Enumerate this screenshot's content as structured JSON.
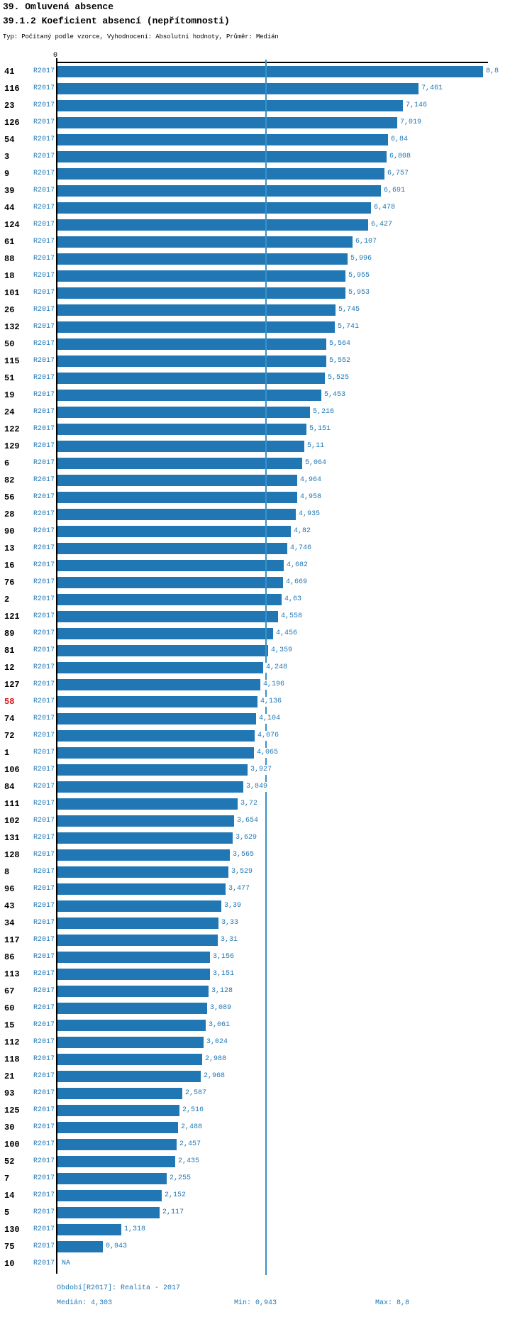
{
  "header": {
    "title": "39. Omluvená absence",
    "subtitle": "39.1.2 Koeficient absencí (nepřítomnosti)",
    "meta": "Typ: Počítaný podle vzorce, Vyhodnocení: Absolutní hodnoty, Průměr: Medián"
  },
  "axis": {
    "zero_label": "0"
  },
  "footer": {
    "period": "Období[R2017]: Realita - 2017",
    "median": "Medián: 4,303",
    "min": "Min: 0,943",
    "max": "Max: 8,8"
  },
  "colors": {
    "bar": "#2077b4",
    "value_text": "#2077b4",
    "median_line": "#3a92c5",
    "highlight": "#dd1111",
    "axis": "#000000"
  },
  "chart_data": {
    "type": "bar",
    "orientation": "horizontal",
    "title": "39.1.2 Koeficient absencí (nepřítomnosti)",
    "series_name": "R2017",
    "xlim": [
      0,
      8.9
    ],
    "median": 4.303,
    "min": 0.943,
    "max": 8.8,
    "grid": false,
    "median_line_shown": true,
    "rows": [
      {
        "id": "41",
        "value": 8.8,
        "display": "8,8"
      },
      {
        "id": "116",
        "value": 7.461,
        "display": "7,461"
      },
      {
        "id": "23",
        "value": 7.146,
        "display": "7,146"
      },
      {
        "id": "126",
        "value": 7.019,
        "display": "7,019"
      },
      {
        "id": "54",
        "value": 6.84,
        "display": "6,84"
      },
      {
        "id": "3",
        "value": 6.808,
        "display": "6,808"
      },
      {
        "id": "9",
        "value": 6.757,
        "display": "6,757"
      },
      {
        "id": "39",
        "value": 6.691,
        "display": "6,691"
      },
      {
        "id": "44",
        "value": 6.478,
        "display": "6,478"
      },
      {
        "id": "124",
        "value": 6.427,
        "display": "6,427"
      },
      {
        "id": "61",
        "value": 6.107,
        "display": "6,107"
      },
      {
        "id": "88",
        "value": 5.996,
        "display": "5,996"
      },
      {
        "id": "18",
        "value": 5.955,
        "display": "5,955"
      },
      {
        "id": "101",
        "value": 5.953,
        "display": "5,953"
      },
      {
        "id": "26",
        "value": 5.745,
        "display": "5,745"
      },
      {
        "id": "132",
        "value": 5.741,
        "display": "5,741"
      },
      {
        "id": "50",
        "value": 5.564,
        "display": "5,564"
      },
      {
        "id": "115",
        "value": 5.552,
        "display": "5,552"
      },
      {
        "id": "51",
        "value": 5.525,
        "display": "5,525"
      },
      {
        "id": "19",
        "value": 5.453,
        "display": "5,453"
      },
      {
        "id": "24",
        "value": 5.216,
        "display": "5,216"
      },
      {
        "id": "122",
        "value": 5.151,
        "display": "5,151"
      },
      {
        "id": "129",
        "value": 5.11,
        "display": "5,11"
      },
      {
        "id": "6",
        "value": 5.064,
        "display": "5,064"
      },
      {
        "id": "82",
        "value": 4.964,
        "display": "4,964"
      },
      {
        "id": "56",
        "value": 4.958,
        "display": "4,958"
      },
      {
        "id": "28",
        "value": 4.935,
        "display": "4,935"
      },
      {
        "id": "90",
        "value": 4.82,
        "display": "4,82"
      },
      {
        "id": "13",
        "value": 4.746,
        "display": "4,746"
      },
      {
        "id": "16",
        "value": 4.682,
        "display": "4,682"
      },
      {
        "id": "76",
        "value": 4.669,
        "display": "4,669"
      },
      {
        "id": "2",
        "value": 4.63,
        "display": "4,63"
      },
      {
        "id": "121",
        "value": 4.558,
        "display": "4,558"
      },
      {
        "id": "89",
        "value": 4.456,
        "display": "4,456"
      },
      {
        "id": "81",
        "value": 4.359,
        "display": "4,359"
      },
      {
        "id": "12",
        "value": 4.248,
        "display": "4,248"
      },
      {
        "id": "127",
        "value": 4.196,
        "display": "4,196"
      },
      {
        "id": "58",
        "value": 4.136,
        "display": "4,136",
        "highlight": true
      },
      {
        "id": "74",
        "value": 4.104,
        "display": "4,104"
      },
      {
        "id": "72",
        "value": 4.076,
        "display": "4,076"
      },
      {
        "id": "1",
        "value": 4.065,
        "display": "4,065"
      },
      {
        "id": "106",
        "value": 3.927,
        "display": "3,927"
      },
      {
        "id": "84",
        "value": 3.849,
        "display": "3,849"
      },
      {
        "id": "111",
        "value": 3.72,
        "display": "3,72"
      },
      {
        "id": "102",
        "value": 3.654,
        "display": "3,654"
      },
      {
        "id": "131",
        "value": 3.629,
        "display": "3,629"
      },
      {
        "id": "128",
        "value": 3.565,
        "display": "3,565"
      },
      {
        "id": "8",
        "value": 3.529,
        "display": "3,529"
      },
      {
        "id": "96",
        "value": 3.477,
        "display": "3,477"
      },
      {
        "id": "43",
        "value": 3.39,
        "display": "3,39"
      },
      {
        "id": "34",
        "value": 3.33,
        "display": "3,33"
      },
      {
        "id": "117",
        "value": 3.31,
        "display": "3,31"
      },
      {
        "id": "86",
        "value": 3.156,
        "display": "3,156"
      },
      {
        "id": "113",
        "value": 3.151,
        "display": "3,151"
      },
      {
        "id": "67",
        "value": 3.128,
        "display": "3,128"
      },
      {
        "id": "60",
        "value": 3.089,
        "display": "3,089"
      },
      {
        "id": "15",
        "value": 3.061,
        "display": "3,061"
      },
      {
        "id": "112",
        "value": 3.024,
        "display": "3,024"
      },
      {
        "id": "118",
        "value": 2.988,
        "display": "2,988"
      },
      {
        "id": "21",
        "value": 2.968,
        "display": "2,968"
      },
      {
        "id": "93",
        "value": 2.587,
        "display": "2,587"
      },
      {
        "id": "125",
        "value": 2.516,
        "display": "2,516"
      },
      {
        "id": "30",
        "value": 2.488,
        "display": "2,488"
      },
      {
        "id": "100",
        "value": 2.457,
        "display": "2,457"
      },
      {
        "id": "52",
        "value": 2.435,
        "display": "2,435"
      },
      {
        "id": "7",
        "value": 2.255,
        "display": "2,255"
      },
      {
        "id": "14",
        "value": 2.152,
        "display": "2,152"
      },
      {
        "id": "5",
        "value": 2.117,
        "display": "2,117"
      },
      {
        "id": "130",
        "value": 1.318,
        "display": "1,318"
      },
      {
        "id": "75",
        "value": 0.943,
        "display": "0,943"
      },
      {
        "id": "10",
        "value": null,
        "display": "NA"
      }
    ]
  }
}
